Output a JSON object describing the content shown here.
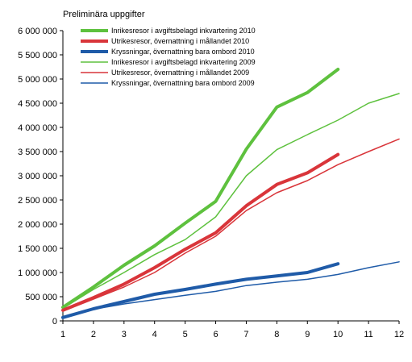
{
  "chart_data": {
    "type": "line",
    "title": "Preliminära uppgifter",
    "xlabel": "",
    "ylabel": "",
    "x_ticks": [
      1,
      2,
      3,
      4,
      5,
      6,
      7,
      8,
      9,
      10,
      11,
      12
    ],
    "xlim": [
      1,
      12
    ],
    "ylim": [
      0,
      6000000
    ],
    "y_ticks": [
      0,
      500000,
      1000000,
      1500000,
      2000000,
      2500000,
      3000000,
      3500000,
      4000000,
      4500000,
      5000000,
      5500000,
      6000000
    ],
    "y_tick_labels": [
      "0",
      "500 000",
      "1 000 000",
      "1 500 000",
      "2 000 000",
      "2 500 000",
      "3 000 000",
      "3 500 000",
      "4 000 000",
      "4 500 000",
      "5 000 000",
      "5 500 000",
      "6 000 000"
    ],
    "grid": false,
    "legend_position": "top-left inside",
    "series": [
      {
        "name": "Inrikesresor i avgiftsbelagd inkvartering 2010",
        "color": "#5ec13e",
        "style": "thick",
        "x": [
          1,
          2,
          3,
          4,
          5,
          6,
          7,
          8,
          9,
          10
        ],
        "y": [
          280000,
          700000,
          1150000,
          1550000,
          2020000,
          2470000,
          3550000,
          4420000,
          4720000,
          5200000
        ]
      },
      {
        "name": "Utrikesresor, övernattning i mållandet 2010",
        "color": "#d9353a",
        "style": "thick",
        "x": [
          1,
          2,
          3,
          4,
          5,
          6,
          7,
          8,
          9,
          10
        ],
        "y": [
          220000,
          480000,
          760000,
          1100000,
          1480000,
          1820000,
          2380000,
          2820000,
          3060000,
          3440000
        ]
      },
      {
        "name": "Kryssningar, övernattning bara ombord 2010",
        "color": "#1f5ba8",
        "style": "thick",
        "x": [
          1,
          2,
          3,
          4,
          5,
          6,
          7,
          8,
          9,
          10
        ],
        "y": [
          70000,
          250000,
          400000,
          550000,
          650000,
          760000,
          860000,
          930000,
          1000000,
          1180000
        ]
      },
      {
        "name": "Inrikesresor i avgiftsbelagd inkvartering 2009",
        "color": "#5ec13e",
        "style": "thin",
        "x": [
          1,
          2,
          3,
          4,
          5,
          6,
          7,
          8,
          9,
          10,
          11,
          12
        ],
        "y": [
          260000,
          650000,
          1000000,
          1370000,
          1680000,
          2150000,
          3000000,
          3540000,
          3850000,
          4150000,
          4500000,
          4700000
        ]
      },
      {
        "name": "Utrikesresor, övernattning i mållandet 2009",
        "color": "#d9353a",
        "style": "thin",
        "x": [
          1,
          2,
          3,
          4,
          5,
          6,
          7,
          8,
          9,
          10,
          11,
          12
        ],
        "y": [
          200000,
          450000,
          700000,
          1000000,
          1400000,
          1750000,
          2280000,
          2650000,
          2900000,
          3230000,
          3500000,
          3760000
        ]
      },
      {
        "name": "Kryssningar, övernattning bara ombord 2009",
        "color": "#1f5ba8",
        "style": "thin",
        "x": [
          1,
          2,
          3,
          4,
          5,
          6,
          7,
          8,
          9,
          10,
          11,
          12
        ],
        "y": [
          60000,
          240000,
          350000,
          440000,
          530000,
          610000,
          730000,
          800000,
          860000,
          960000,
          1100000,
          1220000
        ]
      }
    ]
  }
}
